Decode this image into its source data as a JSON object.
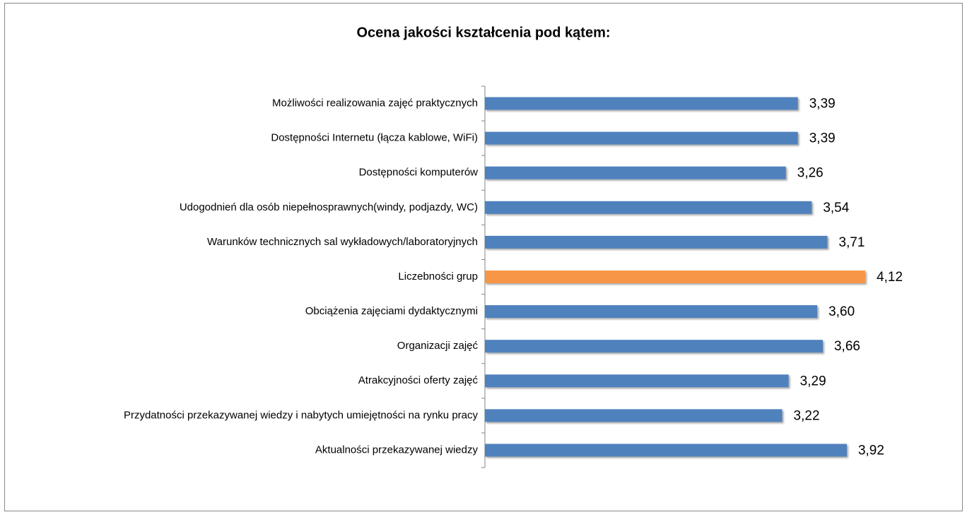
{
  "chart_data": {
    "type": "bar",
    "title": "Ocena jakości kształcenia pod kątem:",
    "categories": [
      "Możliwości realizowania zajęć praktycznych",
      "Dostępności Internetu (łącza kablowe, WiFi)",
      "Dostępności komputerów",
      "Udogodnień dla osób niepełnosprawnych(windy, podjazdy, WC)",
      "Warunków technicznych sal wykładowych/laboratoryjnych",
      "Liczebności grup",
      "Obciążenia zajęciami dydaktycznymi",
      "Organizacji zajęć",
      "Atrakcyjności oferty zajęć",
      "Przydatności przekazywanej wiedzy i nabytych umiejętności na rynku pracy",
      "Aktualności przekazywanej wiedzy"
    ],
    "values": [
      3.39,
      3.39,
      3.26,
      3.54,
      3.71,
      4.12,
      3.6,
      3.66,
      3.29,
      3.22,
      3.92
    ],
    "value_labels": [
      "3,39",
      "3,39",
      "3,26",
      "3,54",
      "3,71",
      "4,12",
      "3,60",
      "3,66",
      "3,29",
      "3,22",
      "3,92"
    ],
    "colors": [
      "#4f81bd",
      "#4f81bd",
      "#4f81bd",
      "#4f81bd",
      "#4f81bd",
      "#f79646",
      "#4f81bd",
      "#4f81bd",
      "#4f81bd",
      "#4f81bd",
      "#4f81bd"
    ]
  }
}
